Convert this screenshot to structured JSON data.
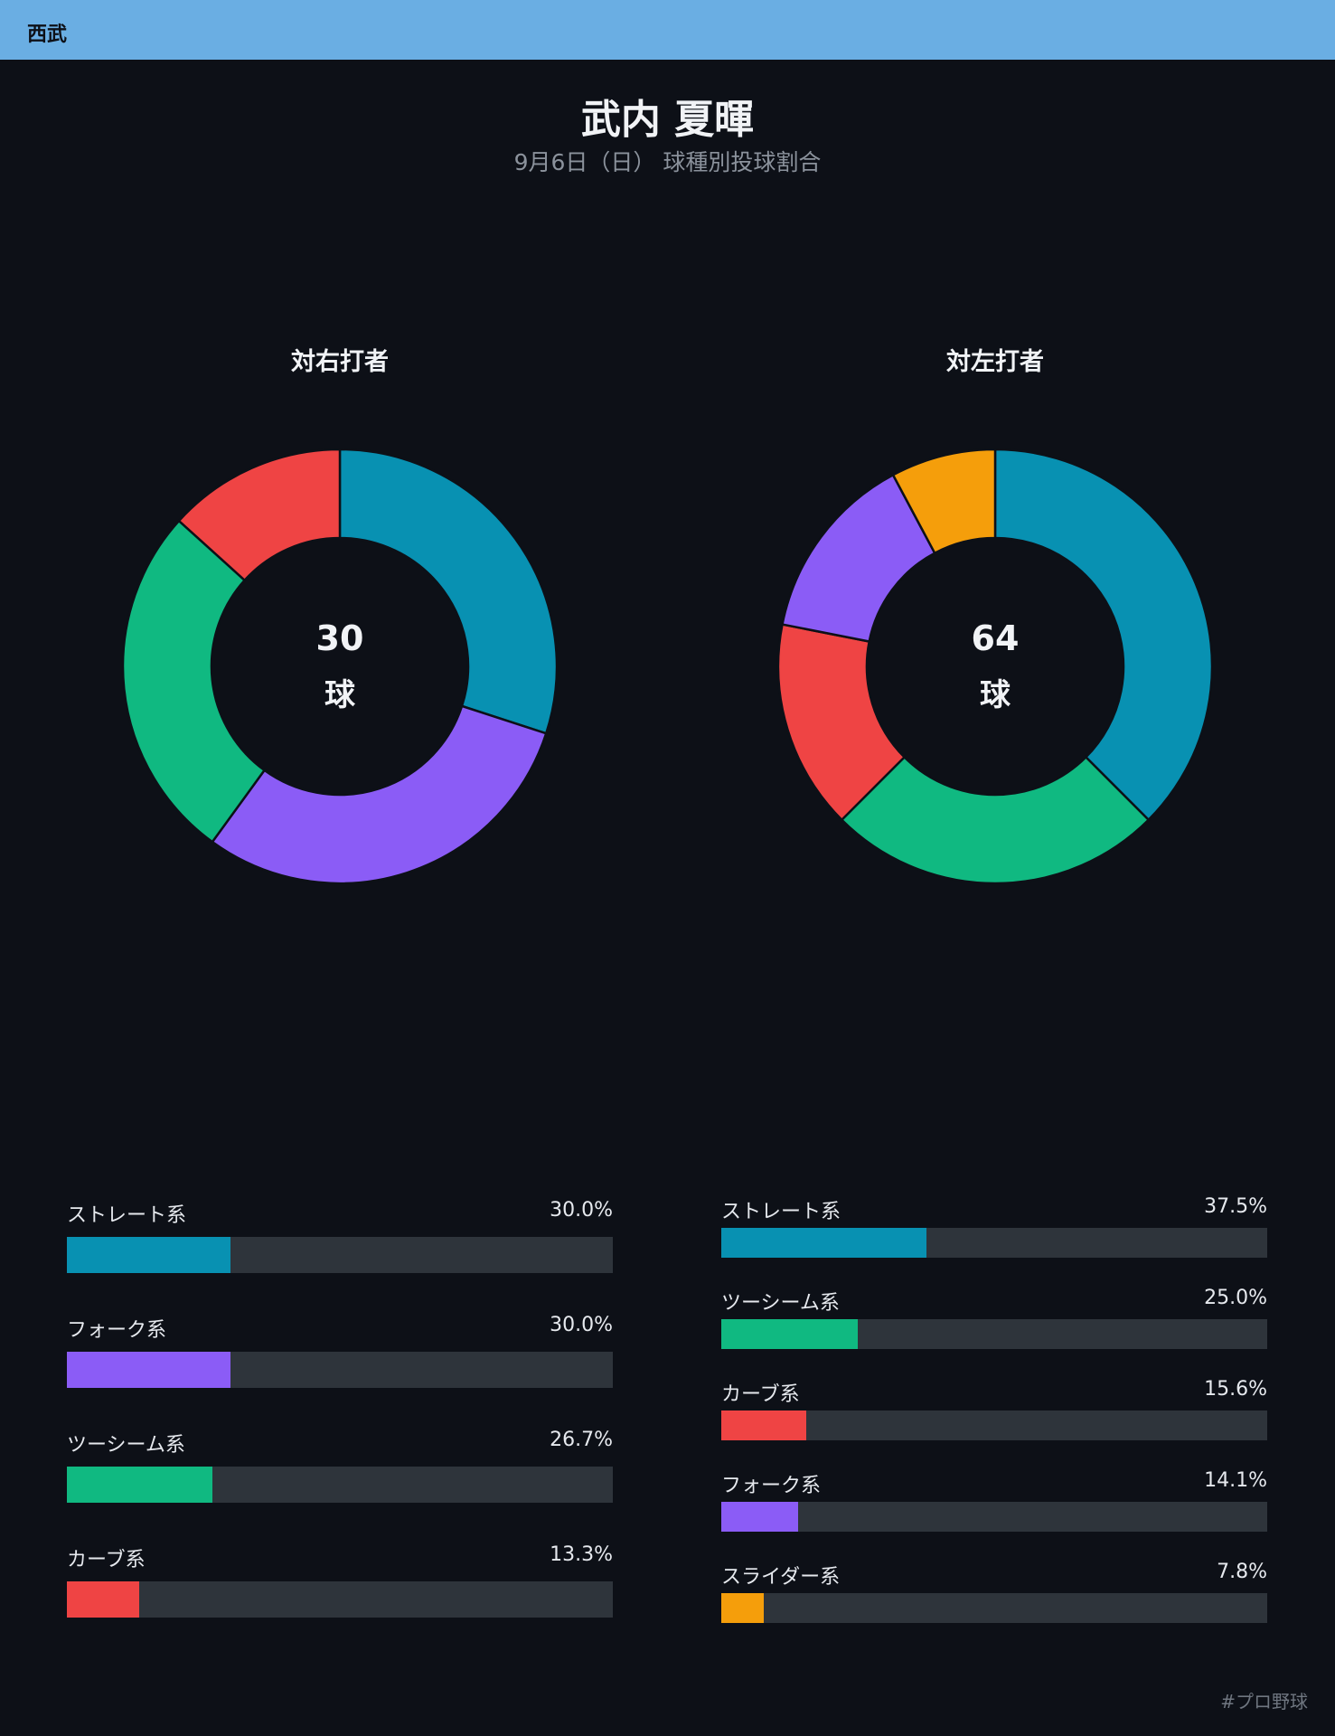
{
  "header": {
    "team": "西武"
  },
  "title": "武内 夏暉",
  "subtitle": "9月6日（日） 球種別投球割合",
  "footer": {
    "hashtag": "#プロ野球"
  },
  "colors": {
    "background": "#0d1017",
    "header": "#6aaee3",
    "track": "#2e343b",
    "ストレート系": "#0891b2",
    "フォーク系": "#8b5cf6",
    "ツーシーム系": "#10b981",
    "カーブ系": "#ef4444",
    "スライダー系": "#f59e0b"
  },
  "chart_data": [
    {
      "type": "pie",
      "title": "対右打者",
      "center_value": "30",
      "center_unit": "球",
      "categories": [
        "ストレート系",
        "フォーク系",
        "ツーシーム系",
        "カーブ系"
      ],
      "values": [
        30.0,
        30.0,
        26.7,
        13.3
      ],
      "value_labels": [
        "30.0%",
        "30.0%",
        "26.7%",
        "13.3%"
      ],
      "colors": [
        "#0891b2",
        "#8b5cf6",
        "#10b981",
        "#ef4444"
      ]
    },
    {
      "type": "pie",
      "title": "対左打者",
      "center_value": "64",
      "center_unit": "球",
      "categories": [
        "ストレート系",
        "ツーシーム系",
        "カーブ系",
        "フォーク系",
        "スライダー系"
      ],
      "values": [
        37.5,
        25.0,
        15.6,
        14.1,
        7.8
      ],
      "value_labels": [
        "37.5%",
        "25.0%",
        "15.6%",
        "14.1%",
        "7.8%"
      ],
      "colors": [
        "#0891b2",
        "#10b981",
        "#ef4444",
        "#8b5cf6",
        "#f59e0b"
      ]
    }
  ]
}
